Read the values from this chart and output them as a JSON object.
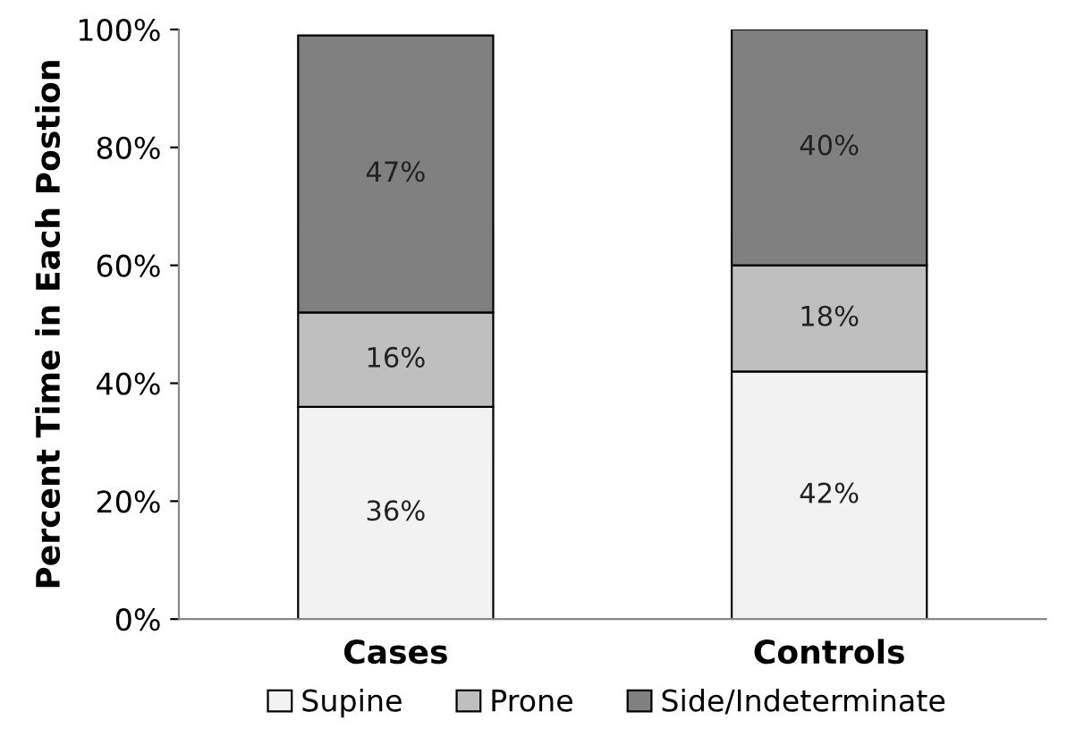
{
  "chart_data": {
    "type": "bar",
    "stacked": true,
    "ylabel": "Percent Time in Each Postion",
    "categories": [
      "Cases",
      "Controls"
    ],
    "series": [
      {
        "name": "Supine",
        "color": "#f2f2f2",
        "values": [
          36,
          42
        ],
        "value_labels": [
          "36%",
          "42%"
        ]
      },
      {
        "name": "Prone",
        "color": "#bfbfbf",
        "values": [
          16,
          18
        ],
        "value_labels": [
          "16%",
          "18%"
        ]
      },
      {
        "name": "Side/Indeterminate",
        "color": "#808080",
        "values": [
          47,
          40
        ],
        "value_labels": [
          "47%",
          "40%"
        ]
      }
    ],
    "ylim": [
      0,
      100
    ],
    "yticks": [
      {
        "value": 0,
        "label": "0%"
      },
      {
        "value": 20,
        "label": "20%"
      },
      {
        "value": 40,
        "label": "40%"
      },
      {
        "value": 60,
        "label": "60%"
      },
      {
        "value": 80,
        "label": "80%"
      },
      {
        "value": 100,
        "label": "100%"
      }
    ],
    "grid": false,
    "legend": "bottom"
  }
}
